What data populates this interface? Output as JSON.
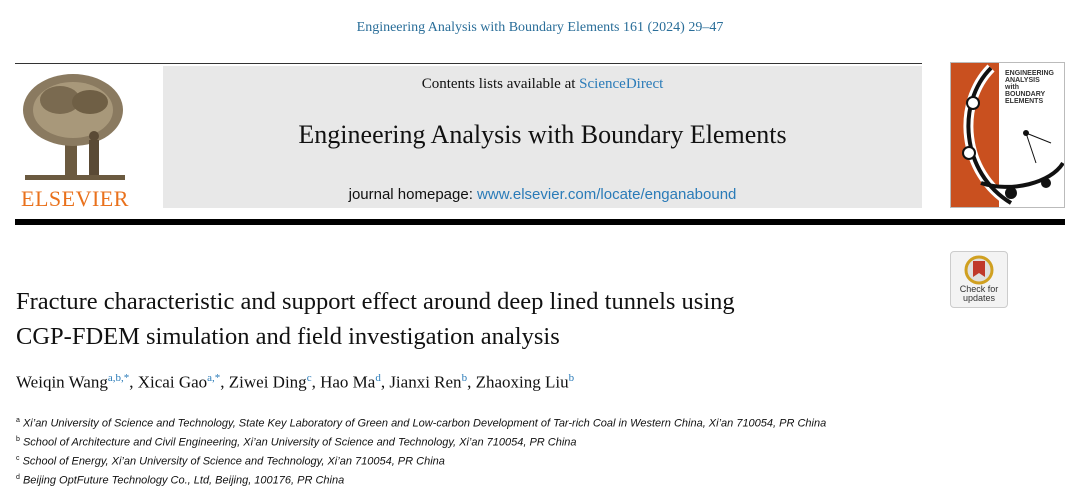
{
  "header": {
    "citation": "Engineering Analysis with Boundary Elements 161 (2024) 29–47"
  },
  "banner": {
    "contents_prefix": "Contents lists available at",
    "contents_link": "ScienceDirect",
    "journal": "Engineering Analysis with Boundary Elements",
    "homepage_prefix": "journal homepage:",
    "homepage_link": "www.elsevier.com/locate/enganabound"
  },
  "publisher": "ELSEVIER",
  "cover": {
    "lines": [
      "ENGINEERING",
      "ANALYSIS",
      "with",
      "BOUNDARY",
      "ELEMENTS"
    ]
  },
  "check_updates": {
    "lines": [
      "Check for",
      "updates"
    ]
  },
  "article": {
    "title_lines": [
      "Fracture characteristic and support effect around deep lined tunnels using",
      "CGP-FDEM simulation and field investigation analysis"
    ],
    "author_separator": ",",
    "authors": [
      {
        "name": "Weiqin Wang",
        "sup": "a,b,*"
      },
      {
        "name": "Xicai Gao",
        "sup": "a,*"
      },
      {
        "name": "Ziwei Ding",
        "sup": "c"
      },
      {
        "name": "Hao Ma",
        "sup": "d"
      },
      {
        "name": "Jianxi Ren",
        "sup": "b"
      },
      {
        "name": "Zhaoxing Liu",
        "sup": "b"
      }
    ],
    "affiliations": [
      {
        "label": "a",
        "text": "Xi’an University of Science and Technology, State Key Laboratory of Green and Low-carbon Development of Tar-rich Coal in Western China, Xi’an 710054, PR China"
      },
      {
        "label": "b",
        "text": "School of Architecture and Civil Engineering, Xi’an University of Science and Technology, Xi’an 710054, PR China"
      },
      {
        "label": "c",
        "text": "School of Energy, Xi’an University of Science and Technology, Xi’an 710054, PR China"
      },
      {
        "label": "d",
        "text": "Beijing OptFuture Technology Co., Ltd, Beijing, 100176, PR China"
      }
    ]
  }
}
